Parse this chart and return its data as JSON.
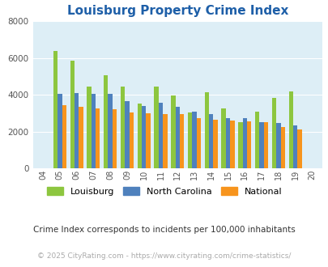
{
  "title": "Louisburg Property Crime Index",
  "years": [
    "04",
    "05",
    "06",
    "07",
    "08",
    "09",
    "10",
    "11",
    "12",
    "13",
    "14",
    "15",
    "16",
    "17",
    "18",
    "19",
    "20"
  ],
  "louisburg": [
    0,
    6400,
    5850,
    4450,
    5050,
    4450,
    3500,
    4450,
    3950,
    3050,
    4150,
    3250,
    2500,
    3100,
    3850,
    4200,
    0
  ],
  "north_carolina": [
    0,
    4050,
    4100,
    4050,
    4050,
    3650,
    3400,
    3550,
    3350,
    3100,
    2950,
    2750,
    2750,
    2500,
    2450,
    2350,
    0
  ],
  "national": [
    0,
    3450,
    3350,
    3250,
    3200,
    3050,
    2980,
    2950,
    2930,
    2750,
    2650,
    2600,
    2550,
    2500,
    2250,
    2130,
    0
  ],
  "louisburg_color": "#8dc63f",
  "nc_color": "#4f81bd",
  "national_color": "#f7941d",
  "bg_color": "#ddeef6",
  "ylim": [
    0,
    8000
  ],
  "yticks": [
    0,
    2000,
    4000,
    6000,
    8000
  ],
  "subtitle": "Crime Index corresponds to incidents per 100,000 inhabitants",
  "footer": "© 2025 CityRating.com - https://www.cityrating.com/crime-statistics/",
  "title_color": "#1e5fa8",
  "subtitle_color": "#333333",
  "footer_color": "#aaaaaa"
}
